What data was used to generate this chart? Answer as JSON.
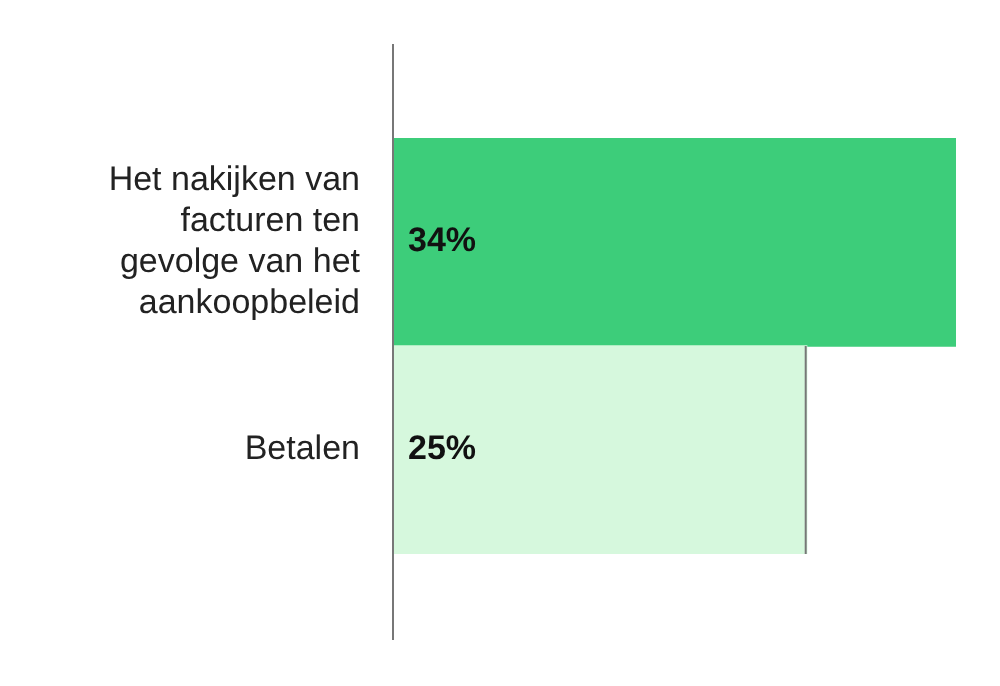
{
  "chart_data": {
    "type": "bar",
    "orientation": "horizontal",
    "categories": [
      "Het nakijken van facturen ten gevolge van het aankoopbeleid",
      "Betalen"
    ],
    "values": [
      34,
      25
    ],
    "colors": [
      "#3dcd7a",
      "#d6f8dd"
    ],
    "value_labels": [
      "34%",
      "25%"
    ],
    "grid": false,
    "legend": false
  }
}
